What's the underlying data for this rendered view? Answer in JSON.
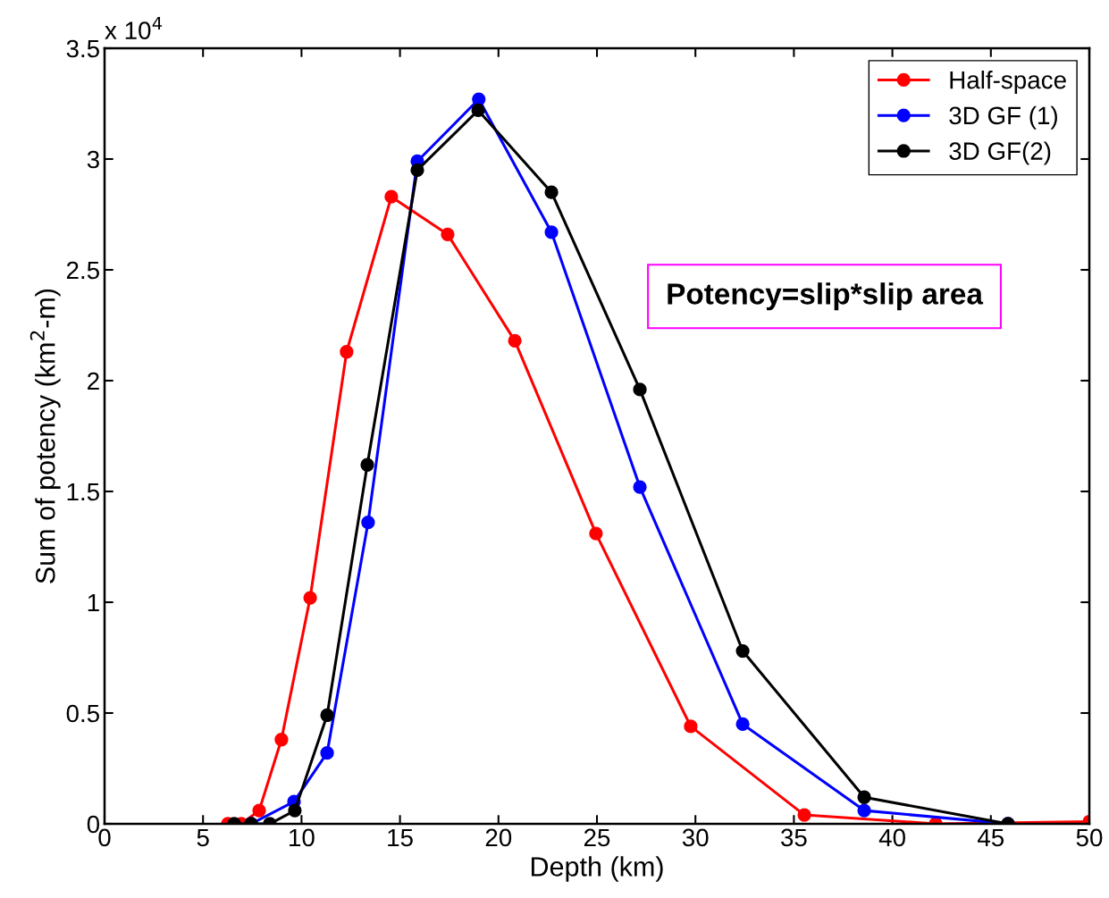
{
  "chart_data": {
    "type": "line",
    "xlabel": "Depth (km)",
    "ylabel": "Sum of potency (km$^{2}$-m)",
    "annotations": [
      "x 10$^{4}$",
      "Potency=slip*slip area"
    ],
    "xlim": [
      0,
      50
    ],
    "xticks": [
      0,
      5,
      10,
      15,
      20,
      25,
      30,
      35,
      40,
      45,
      50
    ],
    "ylim": [
      0,
      3.5
    ],
    "yticks": [
      0,
      0.5,
      1,
      1.5,
      2,
      2.5,
      3,
      3.5
    ],
    "grid": false,
    "legend": "top right",
    "marker": "circle",
    "line_style": "solid",
    "series": [
      {
        "name": "Half-space",
        "color": "#ff0000",
        "x": [
          6.26,
          6.94,
          7.85,
          8.98,
          10.44,
          12.29,
          14.56,
          17.42,
          20.83,
          24.95,
          29.76,
          35.53,
          42.2,
          50.0
        ],
        "values": [
          0,
          0,
          0.06,
          0.38,
          1.02,
          2.13,
          2.83,
          2.66,
          2.18,
          1.31,
          0.44,
          0.04,
          0,
          0.01
        ]
      },
      {
        "name": "3D GF (1)",
        "color": "#0000ff",
        "x": [
          7.44,
          9.62,
          11.3,
          13.38,
          15.88,
          19.0,
          22.69,
          27.18,
          32.4,
          38.57,
          45.87
        ],
        "values": [
          0,
          0.1,
          0.32,
          1.36,
          2.99,
          3.27,
          2.67,
          1.52,
          0.45,
          0.06,
          0
        ]
      },
      {
        "name": "3D GF(2)",
        "color": "#000000",
        "x": [
          6.58,
          7.44,
          8.39,
          9.66,
          11.3,
          13.34,
          15.88,
          18.97,
          22.69,
          27.18,
          32.4,
          38.57,
          45.87
        ],
        "values": [
          0,
          0,
          0,
          0.06,
          0.49,
          1.62,
          2.95,
          3.22,
          2.85,
          1.96,
          0.78,
          0.12,
          0
        ]
      }
    ]
  }
}
